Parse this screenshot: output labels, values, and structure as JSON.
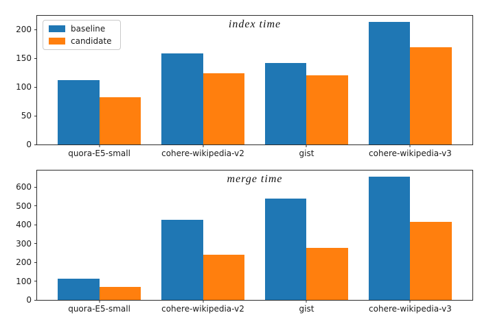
{
  "figure": {
    "background": "#ffffff",
    "spine_color": "#2b2b2b",
    "text_color": "#1a1a1a"
  },
  "legend": {
    "items": [
      {
        "label": "baseline",
        "color": "#1f77b4"
      },
      {
        "label": "candidate",
        "color": "#ff7f0e"
      }
    ]
  },
  "chart_data": [
    {
      "type": "bar",
      "title": "index time",
      "categories": [
        "quora-E5-small",
        "cohere-wikipedia-v2",
        "gist",
        "cohere-wikipedia-v3"
      ],
      "series": [
        {
          "name": "baseline",
          "color": "#1f77b4",
          "values": [
            112,
            158,
            142,
            213
          ]
        },
        {
          "name": "candidate",
          "color": "#ff7f0e",
          "values": [
            82,
            124,
            120,
            169
          ]
        }
      ],
      "xlabel": "",
      "ylabel": "",
      "ylim": [
        0,
        224
      ],
      "yticks": [
        0,
        50,
        100,
        150,
        200
      ],
      "grid": false,
      "legend_position": "upper left"
    },
    {
      "type": "bar",
      "title": "merge time",
      "categories": [
        "quora-E5-small",
        "cohere-wikipedia-v2",
        "gist",
        "cohere-wikipedia-v3"
      ],
      "series": [
        {
          "name": "baseline",
          "color": "#1f77b4",
          "values": [
            112,
            425,
            540,
            656
          ]
        },
        {
          "name": "candidate",
          "color": "#ff7f0e",
          "values": [
            70,
            240,
            278,
            415
          ]
        }
      ],
      "xlabel": "",
      "ylabel": "",
      "ylim": [
        0,
        689
      ],
      "yticks": [
        0,
        100,
        200,
        300,
        400,
        500,
        600
      ],
      "grid": false,
      "legend_position": "none"
    }
  ]
}
